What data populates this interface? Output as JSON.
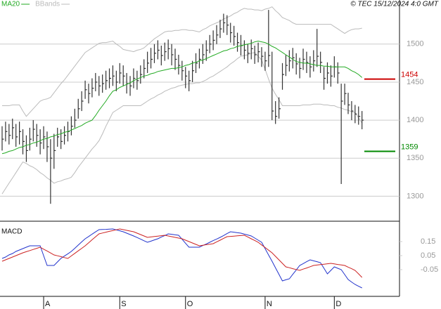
{
  "chart_data": [
    {
      "type": "ohlc",
      "source": "© TEC 15/12/2024 4:0 GMT",
      "categories": [
        null,
        null,
        null,
        null,
        null,
        null,
        null,
        null,
        null,
        null,
        null,
        null,
        "A",
        null,
        null,
        null,
        null,
        null,
        null,
        null,
        null,
        null,
        null,
        null,
        null,
        null,
        null,
        null,
        null,
        null,
        null,
        null,
        null,
        null,
        "S",
        null,
        null,
        null,
        null,
        null,
        null,
        null,
        null,
        null,
        null,
        null,
        null,
        null,
        null,
        null,
        null,
        null,
        null,
        "O",
        null,
        null,
        null,
        null,
        null,
        null,
        null,
        null,
        null,
        null,
        null,
        null,
        null,
        null,
        null,
        null,
        null,
        null,
        null,
        null,
        null,
        null,
        "N",
        null,
        null,
        null,
        null,
        null,
        null,
        null,
        null,
        null,
        null,
        null,
        null,
        null,
        null,
        null,
        null,
        null,
        null,
        null,
        "D",
        null,
        null,
        null,
        null,
        null,
        null,
        null,
        null
      ],
      "bar_color": "#333333",
      "high": [
        1392,
        1398,
        1395,
        1402,
        1395,
        1398,
        1388,
        1380,
        1390,
        1400,
        1395,
        1388,
        1392,
        1385,
        1375,
        1382,
        1390,
        1388,
        1392,
        1398,
        1405,
        1415,
        1428,
        1438,
        1452,
        1448,
        1455,
        1462,
        1458,
        1460,
        1465,
        1468,
        1472,
        1465,
        1475,
        1472,
        1462,
        1458,
        1468,
        1465,
        1472,
        1480,
        1490,
        1495,
        1500,
        1505,
        1498,
        1502,
        1506,
        1500,
        1494,
        1486,
        1478,
        1470,
        1465,
        1478,
        1488,
        1494,
        1500,
        1505,
        1512,
        1518,
        1525,
        1532,
        1540,
        1538,
        1528,
        1524,
        1515,
        1512,
        1505,
        1500,
        1506,
        1498,
        1502,
        1496,
        1490,
        1545,
        1490,
        1425,
        1430,
        1475,
        1486,
        1492,
        1495,
        1488,
        1482,
        1494,
        1490,
        1484,
        1492,
        1520,
        1490,
        1470,
        1476,
        1472,
        1484,
        1476,
        1448,
        1448,
        1436,
        1425,
        1420,
        1418,
        1412
      ],
      "low": [
        1360,
        1372,
        1368,
        1375,
        1365,
        1368,
        1355,
        1345,
        1360,
        1372,
        1365,
        1355,
        1362,
        1345,
        1290,
        1336,
        1365,
        1362,
        1368,
        1372,
        1380,
        1390,
        1402,
        1412,
        1428,
        1422,
        1430,
        1438,
        1432,
        1436,
        1440,
        1442,
        1445,
        1438,
        1448,
        1445,
        1435,
        1432,
        1442,
        1440,
        1448,
        1455,
        1462,
        1468,
        1475,
        1480,
        1472,
        1478,
        1480,
        1472,
        1466,
        1460,
        1452,
        1442,
        1438,
        1450,
        1462,
        1468,
        1474,
        1478,
        1488,
        1492,
        1500,
        1508,
        1515,
        1512,
        1502,
        1498,
        1490,
        1485,
        1480,
        1475,
        1480,
        1474,
        1476,
        1470,
        1465,
        1470,
        1400,
        1395,
        1402,
        1440,
        1458,
        1464,
        1468,
        1460,
        1455,
        1466,
        1462,
        1456,
        1464,
        1470,
        1462,
        1440,
        1448,
        1444,
        1456,
        1448,
        1316,
        1420,
        1408,
        1400,
        1396,
        1394,
        1388
      ],
      "close": [
        1375,
        1385,
        1380,
        1390,
        1378,
        1385,
        1372,
        1360,
        1375,
        1388,
        1380,
        1370,
        1378,
        1365,
        1350,
        1360,
        1378,
        1372,
        1380,
        1385,
        1392,
        1400,
        1415,
        1425,
        1440,
        1435,
        1442,
        1450,
        1445,
        1448,
        1452,
        1455,
        1458,
        1450,
        1462,
        1458,
        1448,
        1445,
        1455,
        1452,
        1460,
        1468,
        1475,
        1480,
        1488,
        1492,
        1485,
        1490,
        1494,
        1486,
        1480,
        1472,
        1465,
        1458,
        1452,
        1465,
        1475,
        1480,
        1486,
        1492,
        1500,
        1505,
        1512,
        1520,
        1528,
        1525,
        1515,
        1510,
        1502,
        1498,
        1492,
        1488,
        1494,
        1486,
        1490,
        1484,
        1478,
        1485,
        1412,
        1405,
        1415,
        1460,
        1472,
        1478,
        1482,
        1474,
        1468,
        1480,
        1476,
        1470,
        1478,
        1484,
        1476,
        1455,
        1462,
        1458,
        1470,
        1462,
        1425,
        1435,
        1420,
        1412,
        1408,
        1405,
        1400
      ],
      "series": [
        {
          "name": "MA20",
          "color": "#22aa22",
          "values": [
            1356,
            1357,
            1359,
            1360,
            1362,
            1364,
            1365,
            1367,
            1368,
            1370,
            1371,
            1373,
            1375,
            1376,
            1378,
            1379,
            1381,
            1382,
            1384,
            1385,
            1387,
            1389,
            1391,
            1393,
            1396,
            1398,
            1400,
            1406,
            1413,
            1419,
            1425,
            1432,
            1438,
            1440,
            1443,
            1445,
            1447,
            1449,
            1452,
            1454,
            1456,
            1458,
            1459,
            1461,
            1462,
            1464,
            1465,
            1466,
            1467,
            1468,
            1468,
            1469,
            1470,
            1472,
            1473,
            1475,
            1476,
            1478,
            1479,
            1481,
            1483,
            1485,
            1487,
            1489,
            1491,
            1492,
            1494,
            1495,
            1497,
            1498,
            1499,
            1500,
            1501,
            1503,
            1504,
            1503,
            1502,
            1500,
            1497,
            1495,
            1492,
            1489,
            1486,
            1483,
            1480,
            1477,
            1476,
            1475,
            1475,
            1474,
            1473,
            1472,
            1472,
            1471,
            1471,
            1470,
            1470,
            1470,
            1470,
            1470,
            1468,
            1465,
            1463,
            1460,
            1456
          ]
        },
        {
          "name": "BBands",
          "color": "#bbbbbb",
          "upper": [
            1419,
            1419,
            1419,
            1420,
            1420,
            1420,
            1412,
            1405,
            1410,
            1415,
            1420,
            1425,
            1427,
            1428,
            1430,
            1436,
            1442,
            1448,
            1453,
            1459,
            1465,
            1471,
            1477,
            1483,
            1489,
            1492,
            1495,
            1498,
            1501,
            1502,
            1502,
            1503,
            1504,
            1500,
            1497,
            1493,
            1492,
            1491,
            1490,
            1492,
            1493,
            1495,
            1499,
            1503,
            1507,
            1510,
            1513,
            1516,
            1517,
            1517,
            1518,
            1518,
            1519,
            1519,
            1518,
            1518,
            1517,
            1516,
            1519,
            1521,
            1524,
            1526,
            1528,
            1530,
            1533,
            1535,
            1537,
            1540,
            1542,
            1545,
            1547,
            1546,
            1546,
            1545,
            1545,
            1544,
            1546,
            1547,
            1549,
            1544,
            1540,
            1535,
            1533,
            1531,
            1528,
            1526,
            1526,
            1526,
            1526,
            1526,
            1526,
            1526,
            1526,
            1526,
            1526,
            1526,
            1523,
            1520,
            1517,
            1514,
            1517,
            1519,
            1520,
            1520,
            1521
          ],
          "lower": [
            1303,
            1310,
            1317,
            1324,
            1331,
            1338,
            1345,
            1343,
            1340,
            1338,
            1335,
            1331,
            1328,
            1324,
            1321,
            1317,
            1319,
            1320,
            1322,
            1323,
            1325,
            1331,
            1338,
            1344,
            1350,
            1356,
            1362,
            1367,
            1373,
            1382,
            1392,
            1401,
            1410,
            1413,
            1416,
            1419,
            1419,
            1419,
            1419,
            1419,
            1419,
            1422,
            1425,
            1428,
            1430,
            1433,
            1435,
            1438,
            1440,
            1442,
            1443,
            1445,
            1446,
            1447,
            1448,
            1448,
            1449,
            1449,
            1451,
            1453,
            1456,
            1458,
            1461,
            1464,
            1467,
            1470,
            1474,
            1477,
            1481,
            1484,
            1485,
            1486,
            1488,
            1489,
            1484,
            1479,
            1467,
            1454,
            1442,
            1434,
            1427,
            1419,
            1419,
            1419,
            1419,
            1419,
            1419,
            1420,
            1420,
            1420,
            1421,
            1421,
            1421,
            1420,
            1420,
            1419,
            1419,
            1417,
            1416,
            1414,
            1413,
            1411,
            1410,
            1403,
            1396
          ]
        }
      ],
      "levels": [
        {
          "value": 1454,
          "color": "#cc0000"
        },
        {
          "value": 1359,
          "color": "#008800"
        }
      ],
      "ylim": [
        1268,
        1558
      ],
      "yticks": [
        1300,
        1350,
        1400,
        1450,
        1500
      ],
      "grid": true
    },
    {
      "type": "macd",
      "title": "MACD",
      "series": [
        {
          "color": "#2233cc",
          "values": [
            0.03,
            0.04,
            0.055,
            0.065,
            0.08,
            0.09,
            0.1,
            0.11,
            0.12,
            0.12,
            0.12,
            0.12,
            0.05,
            -0.02,
            -0.02,
            -0.02,
            0.005,
            0.03,
            0.047,
            0.063,
            0.08,
            0.102,
            0.125,
            0.148,
            0.17,
            0.186,
            0.203,
            0.219,
            0.235,
            0.236,
            0.237,
            0.239,
            0.24,
            0.233,
            0.227,
            0.22,
            0.21,
            0.2,
            0.19,
            0.179,
            0.168,
            0.156,
            0.145,
            0.153,
            0.162,
            0.17,
            0.182,
            0.193,
            0.205,
            0.202,
            0.198,
            0.195,
            0.167,
            0.138,
            0.11,
            0.11,
            0.11,
            0.11,
            0.122,
            0.133,
            0.145,
            0.157,
            0.168,
            0.18,
            0.193,
            0.207,
            0.22,
            0.217,
            0.213,
            0.21,
            0.203,
            0.197,
            0.19,
            0.175,
            0.16,
            0.145,
            0.1,
            0.055,
            0.01,
            -0.037,
            -0.083,
            -0.13,
            -0.122,
            -0.115,
            -0.083,
            -0.052,
            -0.02,
            -0.007,
            0.007,
            0.02,
            0.013,
            0.007,
            0,
            -0.04,
            -0.08,
            -0.055,
            -0.03,
            -0.04,
            -0.05,
            -0.085,
            -0.12,
            -0.138,
            -0.155,
            -0.168,
            -0.18
          ]
        },
        {
          "color": "#cc2222",
          "values": [
            0.01,
            0.02,
            0.03,
            0.04,
            0.05,
            0.06,
            0.07,
            0.078,
            0.086,
            0.094,
            0.102,
            0.11,
            0.096,
            0.083,
            0.069,
            0.055,
            0.049,
            0.043,
            0.036,
            0.03,
            0.048,
            0.066,
            0.084,
            0.102,
            0.12,
            0.141,
            0.163,
            0.184,
            0.205,
            0.211,
            0.217,
            0.223,
            0.228,
            0.234,
            0.24,
            0.235,
            0.23,
            0.225,
            0.22,
            0.21,
            0.2,
            0.19,
            0.18,
            0.183,
            0.186,
            0.189,
            0.192,
            0.195,
            0.19,
            0.185,
            0.18,
            0.175,
            0.17,
            0.16,
            0.15,
            0.14,
            0.13,
            0.12,
            0.124,
            0.128,
            0.131,
            0.135,
            0.148,
            0.16,
            0.173,
            0.185,
            0.187,
            0.189,
            0.191,
            0.193,
            0.195,
            0.183,
            0.17,
            0.158,
            0.145,
            0.126,
            0.108,
            0.089,
            0.07,
            0.045,
            0.02,
            -0.005,
            -0.03,
            -0.036,
            -0.043,
            -0.049,
            -0.055,
            -0.046,
            -0.038,
            -0.029,
            -0.02,
            -0.017,
            -0.014,
            -0.011,
            -0.008,
            -0.005,
            -0.009,
            -0.013,
            -0.016,
            -0.02,
            -0.032,
            -0.043,
            -0.055,
            -0.08,
            -0.105
          ]
        }
      ],
      "ylim": [
        -0.23,
        0.28
      ],
      "yticks": [
        0.15,
        0.05,
        -0.05
      ]
    }
  ]
}
